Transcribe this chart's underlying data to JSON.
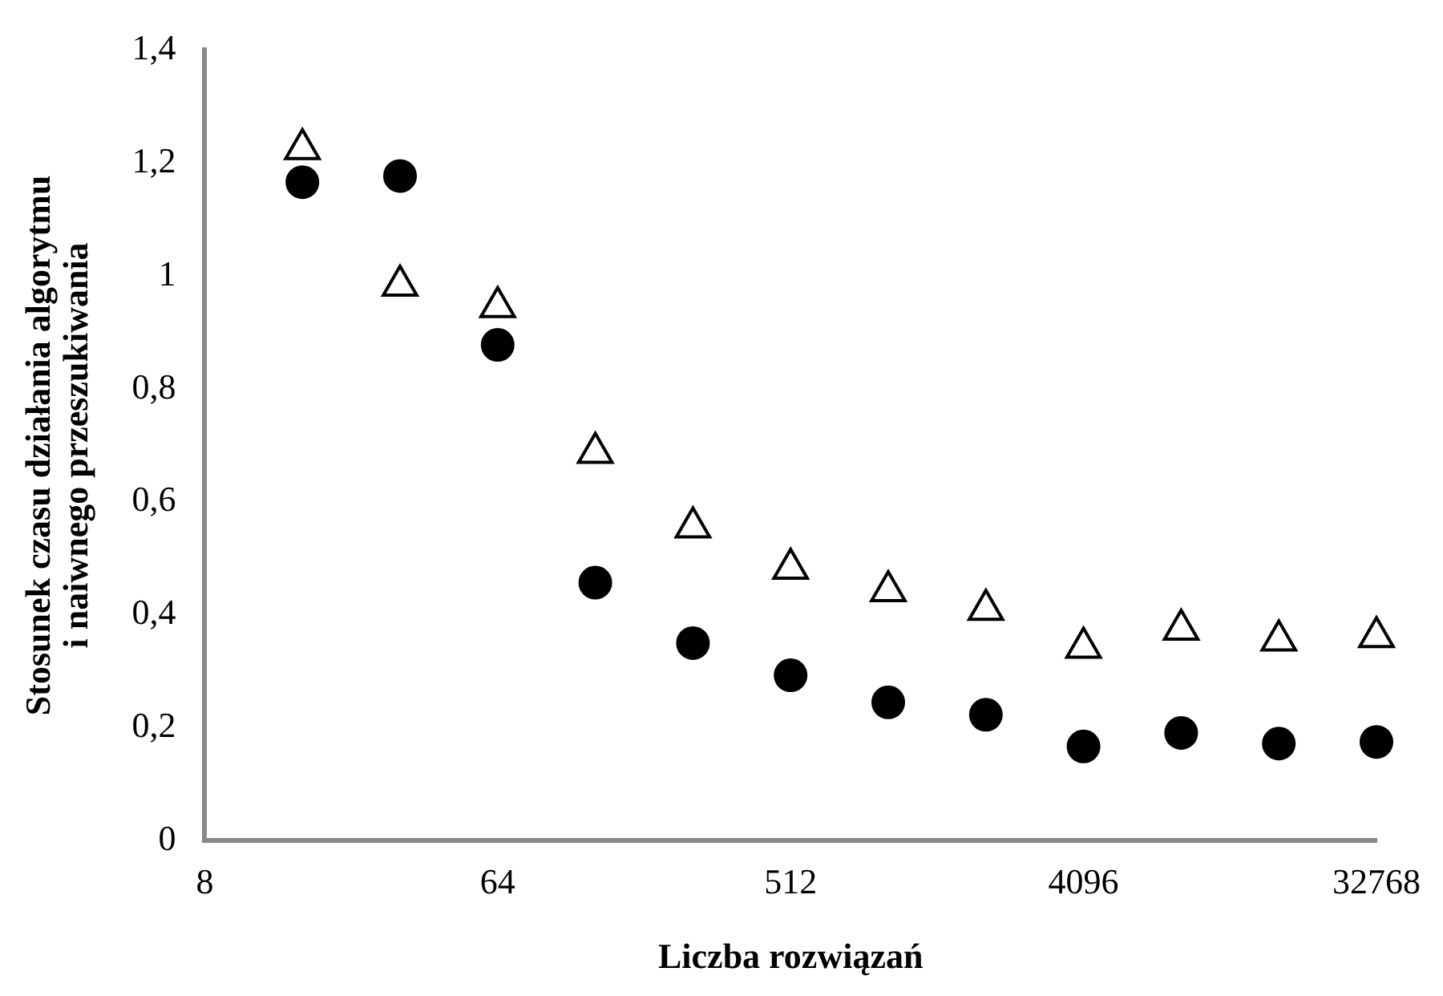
{
  "chart_data": {
    "type": "scatter",
    "xlabel": "Liczba rozwiązań",
    "ylabel": "Stosunek czasu działania algorytmu\ni naiwnego przeszukiwania",
    "x": [
      16,
      32,
      64,
      128,
      256,
      512,
      1024,
      2048,
      4096,
      8192,
      16384,
      32768
    ],
    "log": "x",
    "xlim": [
      8,
      32768
    ],
    "xticks": [
      8,
      64,
      512,
      4096,
      32768
    ],
    "ylim": [
      0,
      1.4
    ],
    "yticks": [
      0,
      {
        "value": 0.2,
        "label": "0,2"
      },
      {
        "value": 0.4,
        "label": "0,4"
      },
      {
        "value": 0.6,
        "label": "0,6"
      },
      {
        "value": 0.8,
        "label": "0,8"
      },
      1,
      {
        "value": 1.2,
        "label": "1,2"
      },
      {
        "value": 1.4,
        "label": "1,4"
      }
    ],
    "grid": false,
    "legend": false,
    "series": [
      {
        "color": "#000000",
        "marker": "triangle",
        "values": [
          1.225,
          0.983,
          0.945,
          0.687,
          0.555,
          0.482,
          0.442,
          0.409,
          0.342,
          0.374,
          0.355,
          0.361
        ]
      },
      {
        "color": "#000000",
        "marker": "circle",
        "values": [
          1.166,
          1.177,
          0.878,
          0.457,
          0.35,
          0.293,
          0.245,
          0.223,
          0.167,
          0.191,
          0.172,
          0.175
        ]
      }
    ]
  }
}
